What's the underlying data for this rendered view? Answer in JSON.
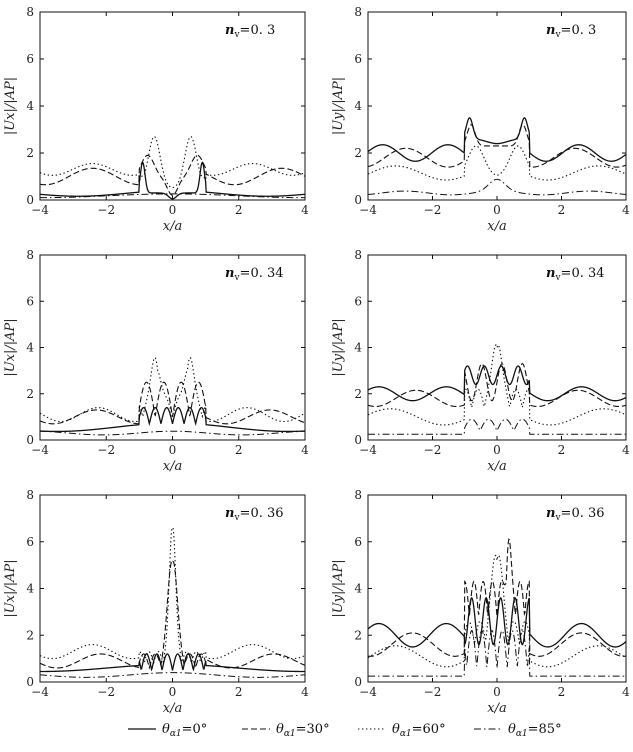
{
  "chart_data": [
    {
      "id": "p1",
      "type": "line",
      "component": "x",
      "nv_label": "n",
      "nv_sub": "v",
      "nv_value": "=0. 3",
      "xlabel": "x/a",
      "ylabel": "|Ux|/|AP|",
      "xlim": [
        -4,
        4
      ],
      "ylim": [
        0,
        8
      ],
      "xticks": [
        "-4",
        "-2",
        "0",
        "2",
        "4"
      ],
      "yticks": [
        "0",
        "2",
        "4",
        "6",
        "8"
      ]
    },
    {
      "id": "p2",
      "type": "line",
      "component": "y",
      "nv_label": "n",
      "nv_sub": "v",
      "nv_value": "=0. 3",
      "xlabel": "x/a",
      "ylabel": "|Uy|/|AP|",
      "xlim": [
        -4,
        4
      ],
      "ylim": [
        0,
        8
      ],
      "xticks": [
        "-4",
        "-2",
        "0",
        "2",
        "4"
      ],
      "yticks": [
        "0",
        "2",
        "4",
        "6",
        "8"
      ]
    },
    {
      "id": "p3",
      "type": "line",
      "component": "x",
      "nv_label": "n",
      "nv_sub": "v",
      "nv_value": "=0. 34",
      "xlabel": "x/a",
      "ylabel": "|Ux|/|AP|",
      "xlim": [
        -4,
        4
      ],
      "ylim": [
        0,
        8
      ],
      "xticks": [
        "-4",
        "-2",
        "0",
        "2",
        "4"
      ],
      "yticks": [
        "0",
        "2",
        "4",
        "6",
        "8"
      ]
    },
    {
      "id": "p4",
      "type": "line",
      "component": "y",
      "nv_label": "n",
      "nv_sub": "v",
      "nv_value": "=0. 34",
      "xlabel": "x/a",
      "ylabel": "|Uy|/|AP|",
      "xlim": [
        -4,
        4
      ],
      "ylim": [
        0,
        8
      ],
      "xticks": [
        "-4",
        "-2",
        "0",
        "2",
        "4"
      ],
      "yticks": [
        "0",
        "2",
        "4",
        "6",
        "8"
      ]
    },
    {
      "id": "p5",
      "type": "line",
      "component": "x",
      "nv_label": "n",
      "nv_sub": "v",
      "nv_value": "=0. 36",
      "xlabel": "x/a",
      "ylabel": "|Ux|/|AP|",
      "xlim": [
        -4,
        4
      ],
      "ylim": [
        0,
        8
      ],
      "xticks": [
        "-4",
        "-2",
        "0",
        "2",
        "4"
      ],
      "yticks": [
        "0",
        "2",
        "4",
        "6",
        "8"
      ]
    },
    {
      "id": "p6",
      "type": "line",
      "component": "y",
      "nv_label": "n",
      "nv_sub": "v",
      "nv_value": "=0. 36",
      "xlabel": "x/a",
      "ylabel": "|Uy|/|AP|",
      "xlim": [
        -4,
        4
      ],
      "ylim": [
        0,
        8
      ],
      "xticks": [
        "-4",
        "-2",
        "0",
        "2",
        "4"
      ],
      "yticks": [
        "0",
        "2",
        "4",
        "6",
        "8"
      ]
    }
  ],
  "legend": {
    "placement": "bottom",
    "entries": [
      {
        "symbol": "θ",
        "sub": "α1",
        "value": "=0°",
        "style": "solid"
      },
      {
        "symbol": "θ",
        "sub": "α1",
        "value": "=30°",
        "style": "dashed"
      },
      {
        "symbol": "θ",
        "sub": "α1",
        "value": "=60°",
        "style": "dotted"
      },
      {
        "symbol": "θ",
        "sub": "α1",
        "value": "=85°",
        "style": "dashdot"
      }
    ]
  }
}
